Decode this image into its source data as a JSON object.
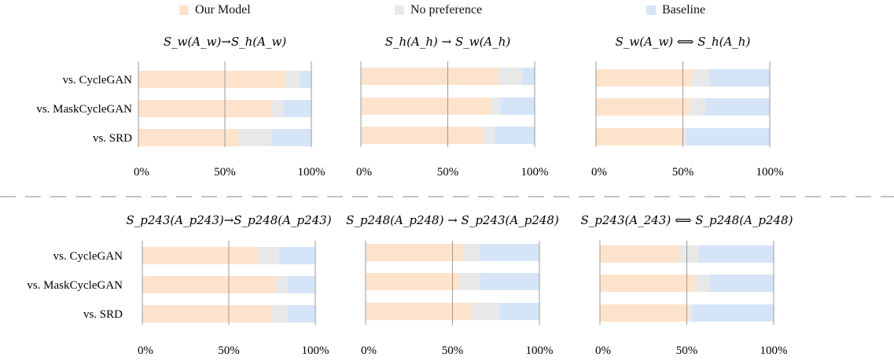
{
  "legend": {
    "items": [
      {
        "label": "Our Model",
        "color": "#fde3cc"
      },
      {
        "label": "No preference",
        "color": "#e8e8e8"
      },
      {
        "label": "Baseline",
        "color": "#d6e4f7"
      }
    ]
  },
  "colors": {
    "ours": "#fde3cc",
    "none": "#e8e8e8",
    "base": "#d6e4f7",
    "axis": "#9a9a9a",
    "divider": "#c4c4c4"
  },
  "chart_data": [
    {
      "type": "bar",
      "stacked": true,
      "orientation": "horizontal",
      "title": "S_w(A_w)→S_h(A_w)",
      "categories": [
        "vs. CycleGAN",
        "vs. MaskCycleGAN",
        "vs. SRD"
      ],
      "series": [
        {
          "name": "Our Model",
          "values": [
            85,
            77,
            58
          ]
        },
        {
          "name": "No preference",
          "values": [
            8,
            7,
            19
          ]
        },
        {
          "name": "Baseline",
          "values": [
            7,
            16,
            23
          ]
        }
      ],
      "xticks": [
        "0%",
        "50%",
        "100%"
      ],
      "xlim": [
        0,
        100
      ]
    },
    {
      "type": "bar",
      "stacked": true,
      "orientation": "horizontal",
      "title": "S_h(A_h) → S_w(A_h)",
      "categories": [
        "vs. CycleGAN",
        "vs. MaskCycleGAN",
        "vs. SRD"
      ],
      "series": [
        {
          "name": "Our Model",
          "values": [
            79,
            75,
            70
          ]
        },
        {
          "name": "No preference",
          "values": [
            14,
            5,
            7
          ]
        },
        {
          "name": "Baseline",
          "values": [
            7,
            20,
            23
          ]
        }
      ],
      "xticks": [
        "0%",
        "50%",
        "100%"
      ],
      "xlim": [
        0,
        100
      ]
    },
    {
      "type": "bar",
      "stacked": true,
      "orientation": "horizontal",
      "title": "S_w(A_w) ⟺ S_h(A_h)",
      "categories": [
        "vs. CycleGAN",
        "vs. MaskCycleGAN",
        "vs. SRD"
      ],
      "series": [
        {
          "name": "Our Model",
          "values": [
            55,
            54,
            50
          ]
        },
        {
          "name": "No preference",
          "values": [
            10,
            9,
            2
          ]
        },
        {
          "name": "Baseline",
          "values": [
            35,
            37,
            48
          ]
        }
      ],
      "xticks": [
        "0%",
        "50%",
        "100%"
      ],
      "xlim": [
        0,
        100
      ]
    },
    {
      "type": "bar",
      "stacked": true,
      "orientation": "horizontal",
      "title": "S_p243(A_p243)→S_p248(A_p243)",
      "categories": [
        "vs. CycleGAN",
        "vs. MaskCycleGAN",
        "vs. SRD"
      ],
      "series": [
        {
          "name": "Our Model",
          "values": [
            67,
            77,
            75
          ]
        },
        {
          "name": "No preference",
          "values": [
            12,
            7,
            9
          ]
        },
        {
          "name": "Baseline",
          "values": [
            21,
            16,
            16
          ]
        }
      ],
      "xticks": [
        "0%",
        "50%",
        "100%"
      ],
      "xlim": [
        0,
        100
      ]
    },
    {
      "type": "bar",
      "stacked": true,
      "orientation": "horizontal",
      "title": "S_p248(A_p248) → S_p243(A_p248)",
      "categories": [
        "vs. CycleGAN",
        "vs. MaskCycleGAN",
        "vs. SRD"
      ],
      "series": [
        {
          "name": "Our Model",
          "values": [
            56,
            54,
            61
          ]
        },
        {
          "name": "No preference",
          "values": [
            10,
            12,
            16
          ]
        },
        {
          "name": "Baseline",
          "values": [
            34,
            34,
            23
          ]
        }
      ],
      "xticks": [
        "0%",
        "50%",
        "100%"
      ],
      "xlim": [
        0,
        100
      ]
    },
    {
      "type": "bar",
      "stacked": true,
      "orientation": "horizontal",
      "title": "S_p243(A_243) ⟺ S_p248(A_p248)",
      "categories": [
        "vs. CycleGAN",
        "vs. MaskCycleGAN",
        "vs. SRD"
      ],
      "series": [
        {
          "name": "Our Model",
          "values": [
            46,
            55,
            51
          ]
        },
        {
          "name": "No preference",
          "values": [
            11,
            8,
            2
          ]
        },
        {
          "name": "Baseline",
          "values": [
            43,
            37,
            47
          ]
        }
      ],
      "xticks": [
        "0%",
        "50%",
        "100%"
      ],
      "xlim": [
        0,
        100
      ]
    }
  ]
}
